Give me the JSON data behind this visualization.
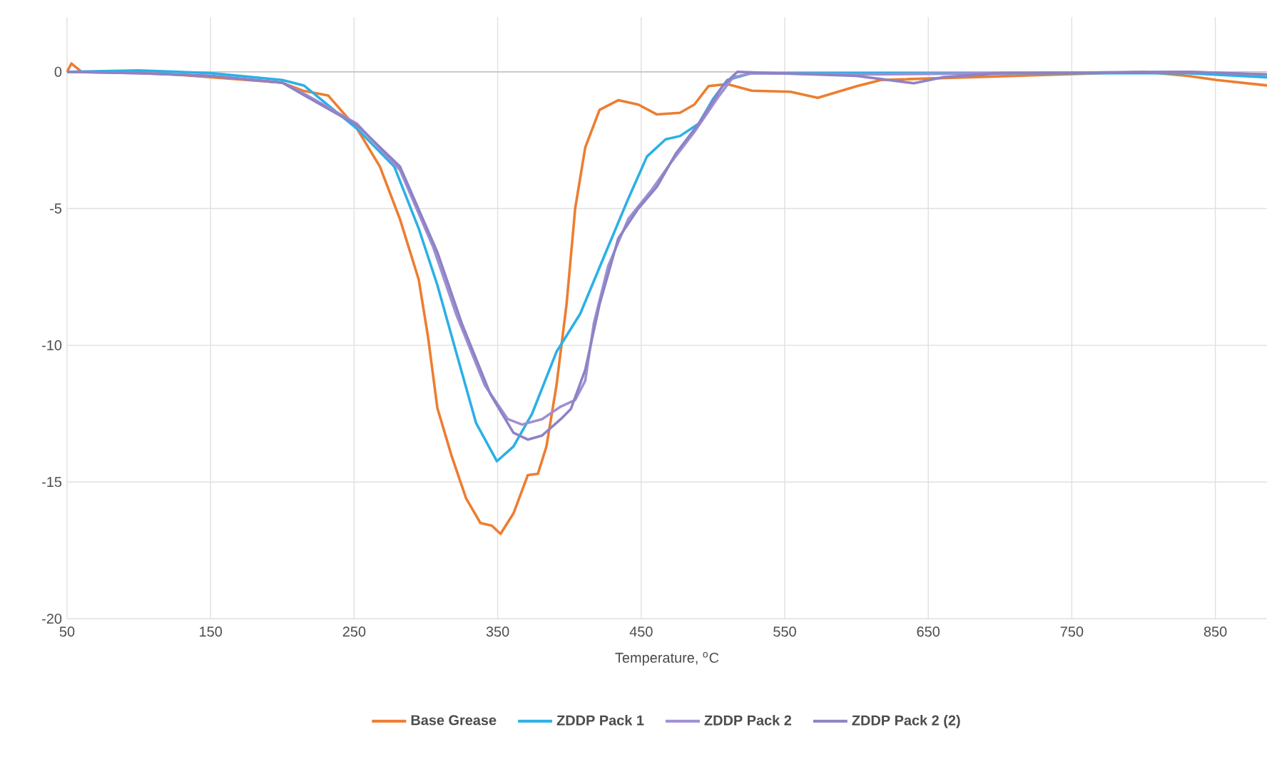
{
  "chart_data": {
    "type": "line",
    "xlabel": "Temperature, $^{o}$C",
    "xlim": [
      50,
      886
    ],
    "ylim": [
      -20,
      2
    ],
    "xticks": [
      50,
      150,
      250,
      350,
      450,
      550,
      650,
      750,
      850
    ],
    "yticks": [
      -20,
      -15,
      -10,
      -5,
      0
    ],
    "grid": true,
    "legend": "bottom",
    "line_style": "solid",
    "marker": "none",
    "series": [
      {
        "name": "Base Grease",
        "color": "#ed7d31",
        "x": [
          50,
          53,
          60,
          100,
          200,
          215,
          232,
          252,
          268,
          282,
          295,
          301.5,
          308,
          318,
          328,
          338,
          346,
          352,
          361,
          371,
          378,
          384,
          391,
          398,
          404,
          411,
          421,
          434,
          448,
          461,
          477,
          487,
          497,
          510,
          527,
          554,
          573,
          600,
          617,
          800,
          831,
          851,
          886
        ],
        "values": [
          0,
          0.3,
          0,
          0,
          -0.4,
          -0.7,
          -0.87,
          -2.08,
          -3.47,
          -5.4,
          -7.6,
          -9.7,
          -12.3,
          -14.06,
          -15.6,
          -16.5,
          -16.6,
          -16.9,
          -16.15,
          -14.75,
          -14.7,
          -13.7,
          -11.46,
          -8.5,
          -5.0,
          -2.77,
          -1.39,
          -1.04,
          -1.2,
          -1.56,
          -1.5,
          -1.2,
          -0.52,
          -0.45,
          -0.69,
          -0.73,
          -0.95,
          -0.53,
          -0.3,
          0,
          -0.15,
          -0.3,
          -0.5
        ]
      },
      {
        "name": "ZDDP Pack 1",
        "color": "#2bb0e6",
        "x": [
          50,
          100,
          150,
          200,
          215,
          252,
          278,
          295,
          308,
          321,
          335,
          349.5,
          361,
          374,
          391,
          407.5,
          424,
          440.6,
          454,
          467,
          477,
          490,
          500,
          510,
          527,
          600,
          700,
          831,
          886
        ],
        "values": [
          0,
          0.05,
          -0.05,
          -0.3,
          -0.5,
          -2.08,
          -3.47,
          -5.73,
          -7.8,
          -10.24,
          -12.85,
          -14.24,
          -13.7,
          -12.5,
          -10.24,
          -8.85,
          -6.77,
          -4.69,
          -3.1,
          -2.47,
          -2.35,
          -1.9,
          -1.0,
          -0.3,
          -0.05,
          -0.05,
          -0.05,
          -0.05,
          -0.2
        ]
      },
      {
        "name": "ZDDP Pack 2",
        "color": "#9f8fd4",
        "x": [
          50,
          100,
          150,
          200,
          215,
          252,
          282,
          305,
          321,
          341,
          357,
          367,
          381,
          394,
          404,
          411,
          417,
          427,
          441,
          457,
          471,
          487,
          504,
          514,
          527,
          600,
          700,
          831,
          886
        ],
        "values": [
          0,
          -0.05,
          -0.15,
          -0.4,
          -0.8,
          -1.9,
          -3.6,
          -6.4,
          -8.85,
          -11.46,
          -12.7,
          -12.9,
          -12.7,
          -12.24,
          -12.0,
          -11.3,
          -9.2,
          -7.1,
          -5.38,
          -4.34,
          -3.3,
          -2.2,
          -0.9,
          -0.2,
          -0.05,
          -0.1,
          -0.05,
          0,
          -0.1
        ]
      },
      {
        "name": "ZDDP Pack 2 (2)",
        "color": "#8e82c4",
        "x": [
          50,
          100,
          150,
          200,
          215,
          252,
          282,
          308,
          325,
          345,
          361,
          371,
          381,
          394,
          401,
          411,
          421,
          434,
          448,
          461,
          474,
          490,
          507,
          517,
          600,
          640,
          660,
          700,
          831,
          886
        ],
        "values": [
          0,
          -0.05,
          -0.15,
          -0.4,
          -0.85,
          -1.95,
          -3.47,
          -6.6,
          -9.2,
          -11.8,
          -13.2,
          -13.45,
          -13.3,
          -12.7,
          -12.33,
          -10.9,
          -8.5,
          -6.1,
          -5.0,
          -4.2,
          -3.0,
          -1.9,
          -0.5,
          0,
          -0.15,
          -0.42,
          -0.2,
          -0.05,
          0,
          -0.1
        ]
      }
    ]
  }
}
